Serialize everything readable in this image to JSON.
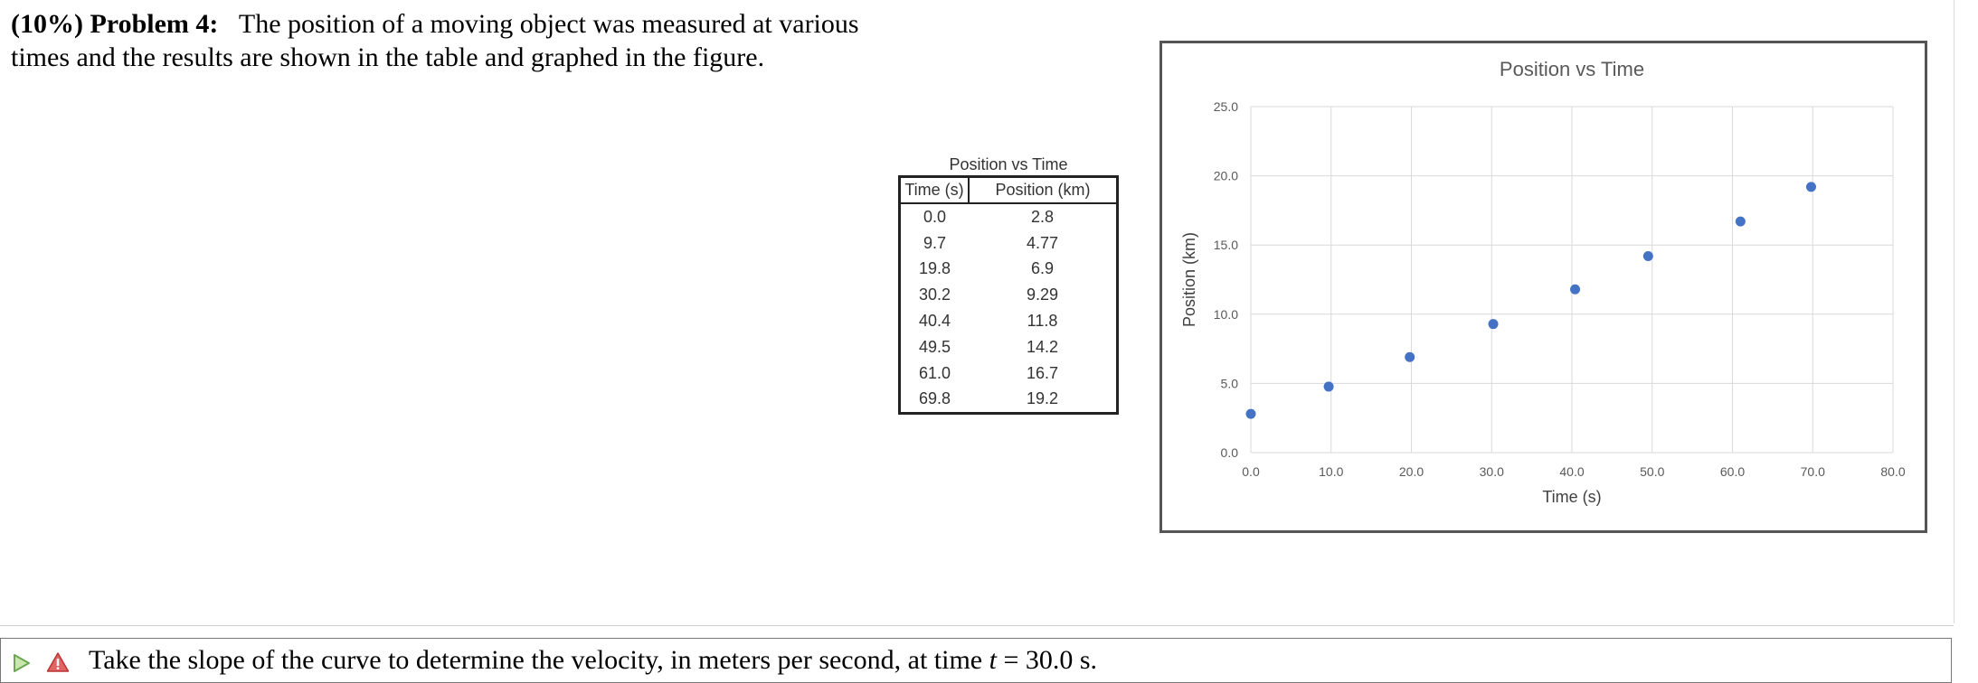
{
  "problem": {
    "weight": "(10%)",
    "label": "Problem 4:",
    "statement": "The position of a moving object was measured at various times and the results are shown in the table and graphed in the figure."
  },
  "table": {
    "title": "Position vs Time",
    "headers": [
      "Time (s)",
      "Position (km)"
    ],
    "rows": [
      [
        "0.0",
        "2.8"
      ],
      [
        "9.7",
        "4.77"
      ],
      [
        "19.8",
        "6.9"
      ],
      [
        "30.2",
        "9.29"
      ],
      [
        "40.4",
        "11.8"
      ],
      [
        "49.5",
        "14.2"
      ],
      [
        "61.0",
        "16.7"
      ],
      [
        "69.8",
        "19.2"
      ]
    ]
  },
  "chart_data": {
    "type": "scatter",
    "title": "Position vs Time",
    "xlabel": "Time (s)",
    "ylabel": "Position (km)",
    "xlim": [
      0,
      80
    ],
    "ylim": [
      0,
      25
    ],
    "xticks": [
      "0.0",
      "10.0",
      "20.0",
      "30.0",
      "40.0",
      "50.0",
      "60.0",
      "70.0",
      "80.0"
    ],
    "yticks": [
      "0.0",
      "5.0",
      "10.0",
      "15.0",
      "20.0",
      "25.0"
    ],
    "grid": true,
    "marker_color": "#4472c4",
    "x": [
      0.0,
      9.7,
      19.8,
      30.2,
      40.4,
      49.5,
      61.0,
      69.8
    ],
    "y": [
      2.8,
      4.77,
      6.9,
      9.29,
      11.8,
      14.2,
      16.7,
      19.2
    ]
  },
  "question": {
    "prefix": "Take the slope of the curve to determine the velocity, in meters per second, at time ",
    "variable": "t",
    "suffix": " = 30.0 s."
  },
  "icons": {
    "play": "play-triangle-icon",
    "warning": "warning-icon"
  }
}
